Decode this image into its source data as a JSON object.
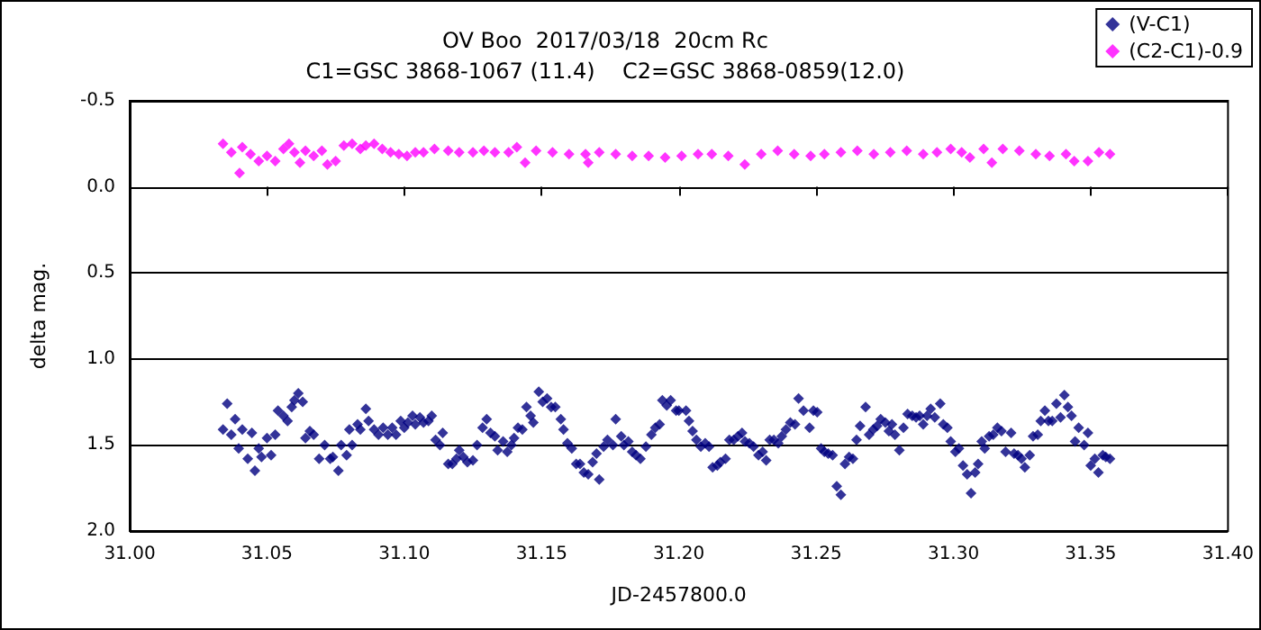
{
  "chart_data": {
    "type": "scatter",
    "title": "OV Boo  2017/03/18  20cm Rc",
    "subtitle": "C1=GSC 3868-1067 (11.4)    C2=GSC 3868-0859(12.0)",
    "xlabel": "JD-2457800.0",
    "ylabel": "delta mag.",
    "xlim": [
      31.0,
      31.4
    ],
    "xticks": [
      {
        "value": 31.0,
        "label": "31.00"
      },
      {
        "value": 31.05,
        "label": "31.05"
      },
      {
        "value": 31.1,
        "label": "31.10"
      },
      {
        "value": 31.15,
        "label": "31.15"
      },
      {
        "value": 31.2,
        "label": "31.20"
      },
      {
        "value": 31.25,
        "label": "31.25"
      },
      {
        "value": 31.3,
        "label": "31.30"
      },
      {
        "value": 31.35,
        "label": "31.35"
      },
      {
        "value": 31.4,
        "label": "31.40"
      }
    ],
    "ylim": [
      2.0,
      -0.5
    ],
    "yticks": [
      {
        "value": -0.5,
        "label": "-0.5"
      },
      {
        "value": 0,
        "label": "0.0"
      },
      {
        "value": 0.5,
        "label": "0.5"
      },
      {
        "value": 1.0,
        "label": "1.0"
      },
      {
        "value": 1.5,
        "label": "1.5"
      },
      {
        "value": 2.0,
        "label": "2.0"
      }
    ],
    "grid": "y",
    "legend": "top right",
    "marker": "diamond",
    "series": [
      {
        "name": "(V-C1)",
        "color": "#000080",
        "x": [
          31.034,
          31.0355,
          31.037,
          31.0384,
          31.0397,
          31.041,
          31.043,
          31.0445,
          31.0456,
          31.047,
          31.048,
          31.05,
          31.0515,
          31.053,
          31.054,
          31.056,
          31.0575,
          31.059,
          31.06,
          31.0614,
          31.063,
          31.064,
          31.0656,
          31.067,
          31.069,
          31.071,
          31.073,
          31.074,
          31.076,
          31.077,
          31.079,
          31.08,
          31.081,
          31.083,
          31.084,
          31.086,
          31.087,
          31.089,
          31.0906,
          31.0923,
          31.094,
          31.0956,
          31.097,
          31.0987,
          31.1,
          31.1013,
          31.103,
          31.104,
          31.1057,
          31.107,
          31.1088,
          31.11,
          31.1114,
          31.113,
          31.114,
          31.116,
          31.1175,
          31.119,
          31.12,
          31.1215,
          31.123,
          31.125,
          31.1265,
          31.1285,
          31.13,
          31.1314,
          31.133,
          31.134,
          31.136,
          31.1375,
          31.139,
          31.14,
          31.1414,
          31.143,
          31.1445,
          31.146,
          31.147,
          31.149,
          31.1504,
          31.152,
          31.1535,
          31.155,
          31.157,
          31.158,
          31.1594,
          31.161,
          31.1626,
          31.164,
          31.1654,
          31.167,
          31.1686,
          31.17,
          31.171,
          31.1726,
          31.174,
          31.176,
          31.177,
          31.179,
          31.18,
          31.1816,
          31.183,
          31.1844,
          31.186,
          31.188,
          31.19,
          31.1914,
          31.193,
          31.194,
          31.1956,
          31.197,
          31.199,
          31.2,
          31.2026,
          31.2037,
          31.205,
          31.2064,
          31.208,
          31.2096,
          31.211,
          31.2123,
          31.214,
          31.2151,
          31.217,
          31.2184,
          31.22,
          31.2215,
          31.223,
          31.2241,
          31.2257,
          31.2272,
          31.229,
          31.2305,
          31.2318,
          31.2331,
          31.2346,
          31.2362,
          31.2375,
          31.239,
          31.2406,
          31.2423,
          31.2436,
          31.2454,
          31.2476,
          31.249,
          31.2504,
          31.2518,
          31.253,
          31.2544,
          31.256,
          31.2575,
          31.259,
          31.2605,
          31.262,
          31.2634,
          31.2647,
          31.266,
          31.268,
          31.2693,
          31.2708,
          31.2722,
          31.2735,
          31.2752,
          31.2765,
          31.2776,
          31.2787,
          31.2803,
          31.2818,
          31.2833,
          31.285,
          31.2864,
          31.2877,
          31.289,
          31.2904,
          31.2917,
          31.2932,
          31.2952,
          31.2963,
          31.2978,
          31.299,
          31.3007,
          31.302,
          31.3035,
          31.305,
          31.3064,
          31.3079,
          31.309,
          31.3103,
          31.3114,
          31.313,
          31.3145,
          31.316,
          31.3175,
          31.319,
          31.321,
          31.3221,
          31.3235,
          31.3248,
          31.326,
          31.3278,
          31.329,
          31.3307,
          31.3318,
          31.3333,
          31.3346,
          31.336,
          31.3375,
          31.339,
          31.3404,
          31.3417,
          31.343,
          31.3443,
          31.3456,
          31.3476,
          31.349,
          31.35,
          31.3515,
          31.3528,
          31.3544,
          31.3555,
          31.357
        ],
        "values": [
          1.41,
          1.26,
          1.44,
          1.35,
          1.52,
          1.41,
          1.58,
          1.43,
          1.65,
          1.52,
          1.57,
          1.46,
          1.56,
          1.44,
          1.3,
          1.33,
          1.36,
          1.28,
          1.24,
          1.2,
          1.25,
          1.46,
          1.42,
          1.44,
          1.58,
          1.5,
          1.58,
          1.57,
          1.65,
          1.5,
          1.56,
          1.41,
          1.5,
          1.38,
          1.41,
          1.29,
          1.36,
          1.41,
          1.44,
          1.4,
          1.44,
          1.4,
          1.44,
          1.36,
          1.4,
          1.37,
          1.33,
          1.38,
          1.34,
          1.37,
          1.36,
          1.33,
          1.47,
          1.5,
          1.43,
          1.61,
          1.61,
          1.58,
          1.53,
          1.57,
          1.6,
          1.59,
          1.5,
          1.4,
          1.35,
          1.43,
          1.45,
          1.53,
          1.48,
          1.54,
          1.5,
          1.46,
          1.4,
          1.41,
          1.28,
          1.33,
          1.37,
          1.19,
          1.25,
          1.23,
          1.28,
          1.28,
          1.35,
          1.41,
          1.49,
          1.52,
          1.61,
          1.61,
          1.66,
          1.67,
          1.6,
          1.55,
          1.7,
          1.51,
          1.47,
          1.5,
          1.35,
          1.45,
          1.5,
          1.48,
          1.54,
          1.56,
          1.58,
          1.51,
          1.44,
          1.4,
          1.38,
          1.24,
          1.27,
          1.24,
          1.3,
          1.3,
          1.3,
          1.36,
          1.42,
          1.47,
          1.51,
          1.49,
          1.51,
          1.63,
          1.62,
          1.6,
          1.58,
          1.47,
          1.47,
          1.45,
          1.43,
          1.48,
          1.49,
          1.51,
          1.56,
          1.54,
          1.59,
          1.47,
          1.47,
          1.49,
          1.45,
          1.41,
          1.37,
          1.38,
          1.23,
          1.3,
          1.4,
          1.3,
          1.31,
          1.52,
          1.54,
          1.55,
          1.56,
          1.74,
          1.79,
          1.61,
          1.57,
          1.58,
          1.47,
          1.39,
          1.28,
          1.44,
          1.41,
          1.39,
          1.35,
          1.37,
          1.42,
          1.38,
          1.44,
          1.53,
          1.4,
          1.32,
          1.33,
          1.34,
          1.33,
          1.38,
          1.33,
          1.29,
          1.34,
          1.26,
          1.38,
          1.4,
          1.48,
          1.54,
          1.52,
          1.62,
          1.67,
          1.78,
          1.66,
          1.61,
          1.48,
          1.52,
          1.45,
          1.44,
          1.4,
          1.42,
          1.54,
          1.43,
          1.55,
          1.56,
          1.58,
          1.63,
          1.56,
          1.45,
          1.44,
          1.36,
          1.3,
          1.36,
          1.36,
          1.26,
          1.34,
          1.21,
          1.28,
          1.33,
          1.48,
          1.4,
          1.5,
          1.43,
          1.62,
          1.58,
          1.66,
          1.56,
          1.57,
          1.58
        ]
      },
      {
        "name": "(C2-C1)-0.9",
        "color": "#ff00ff",
        "x": [
          31.034,
          31.037,
          31.04,
          31.041,
          31.044,
          31.047,
          31.05,
          31.053,
          31.056,
          31.058,
          31.06,
          31.062,
          31.064,
          31.067,
          31.07,
          31.072,
          31.075,
          31.078,
          31.081,
          31.084,
          31.086,
          31.089,
          31.092,
          31.095,
          31.098,
          31.101,
          31.104,
          31.107,
          31.111,
          31.116,
          31.12,
          31.125,
          31.129,
          31.133,
          31.138,
          31.141,
          31.144,
          31.148,
          31.154,
          31.16,
          31.166,
          31.167,
          31.171,
          31.177,
          31.183,
          31.189,
          31.195,
          31.201,
          31.207,
          31.212,
          31.218,
          31.224,
          31.23,
          31.236,
          31.242,
          31.248,
          31.253,
          31.259,
          31.265,
          31.271,
          31.277,
          31.283,
          31.289,
          31.294,
          31.299,
          31.303,
          31.306,
          31.311,
          31.314,
          31.318,
          31.324,
          31.33,
          31.335,
          31.341,
          31.344,
          31.349,
          31.353,
          31.357
        ],
        "values": [
          -0.25,
          -0.2,
          -0.08,
          -0.23,
          -0.19,
          -0.15,
          -0.18,
          -0.15,
          -0.22,
          -0.25,
          -0.2,
          -0.14,
          -0.21,
          -0.18,
          -0.21,
          -0.13,
          -0.15,
          -0.24,
          -0.25,
          -0.22,
          -0.24,
          -0.25,
          -0.22,
          -0.2,
          -0.19,
          -0.18,
          -0.2,
          -0.2,
          -0.22,
          -0.21,
          -0.2,
          -0.2,
          -0.21,
          -0.2,
          -0.2,
          -0.23,
          -0.14,
          -0.21,
          -0.2,
          -0.19,
          -0.19,
          -0.14,
          -0.2,
          -0.19,
          -0.18,
          -0.18,
          -0.17,
          -0.18,
          -0.19,
          -0.19,
          -0.18,
          -0.13,
          -0.19,
          -0.21,
          -0.19,
          -0.18,
          -0.19,
          -0.2,
          -0.21,
          -0.19,
          -0.2,
          -0.21,
          -0.19,
          -0.2,
          -0.22,
          -0.2,
          -0.17,
          -0.22,
          -0.14,
          -0.22,
          -0.21,
          -0.19,
          -0.18,
          -0.19,
          -0.15,
          -0.15,
          -0.2,
          -0.19
        ]
      }
    ]
  }
}
